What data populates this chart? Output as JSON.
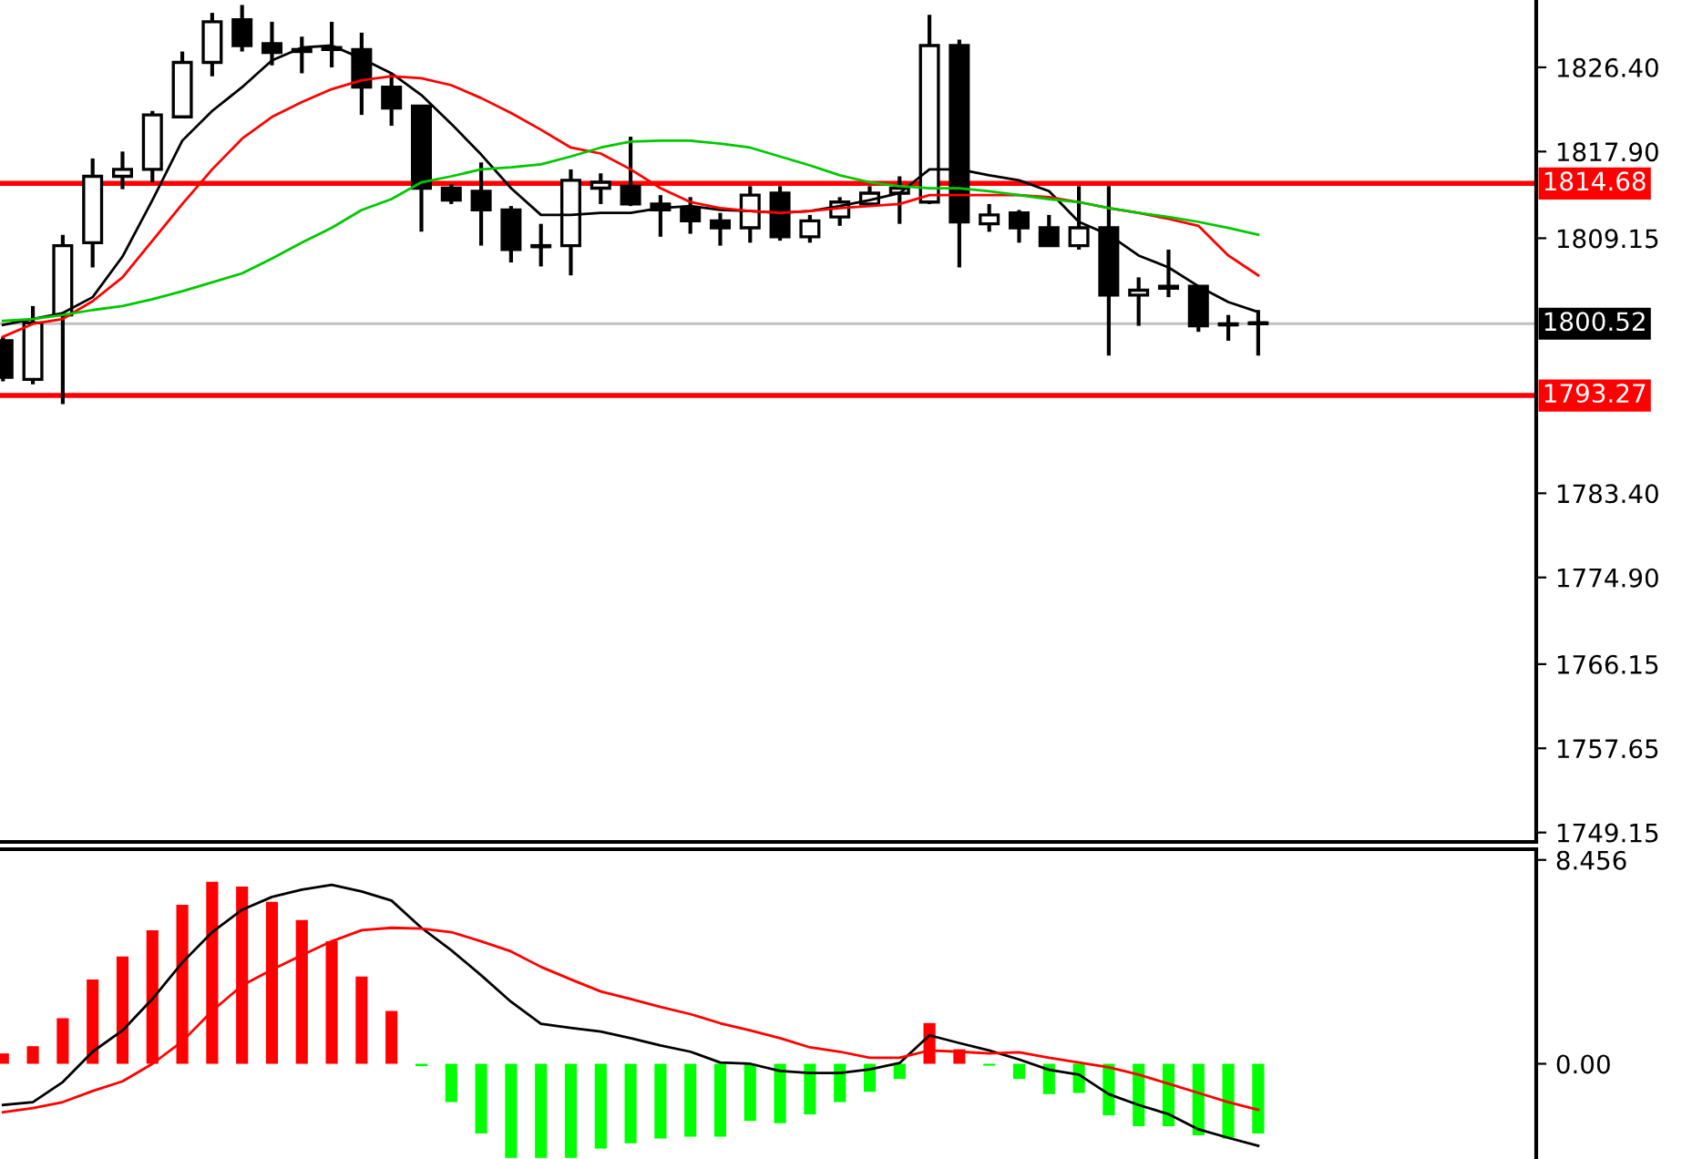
{
  "chart_data": [
    {
      "type": "candlestick",
      "categories": [
        null,
        null,
        null,
        null,
        null,
        null,
        null,
        null,
        null,
        null,
        null,
        null,
        null,
        null,
        null,
        null,
        null,
        null,
        null,
        null,
        null,
        null,
        null,
        null,
        null,
        null,
        null,
        null,
        null,
        null,
        null,
        null,
        null,
        null,
        null,
        null,
        null,
        null,
        null,
        null,
        null,
        null,
        null
      ],
      "ohlc": [
        [
          1798.8,
          1799.2,
          1794.7,
          1795.1
        ],
        [
          1794.9,
          1802.3,
          1794.4,
          1800.6
        ],
        [
          1801.4,
          1809.5,
          1792.4,
          1808.4
        ],
        [
          1808.7,
          1817.2,
          1806.2,
          1815.4
        ],
        [
          1815.4,
          1817.9,
          1814.1,
          1816.1
        ],
        [
          1816.1,
          1822.0,
          1814.8,
          1821.6
        ],
        [
          1821.4,
          1828.0,
          1821.4,
          1826.9
        ],
        [
          1826.9,
          1831.9,
          1825.5,
          1831.0
        ],
        [
          1831.2,
          1832.7,
          1828.0,
          1828.6
        ],
        [
          1828.8,
          1831.0,
          1826.6,
          1827.9
        ],
        [
          1828.2,
          1829.5,
          1825.8,
          1828.0
        ],
        [
          1828.4,
          1831.0,
          1826.4,
          1828.2
        ],
        [
          1828.2,
          1829.9,
          1821.6,
          1824.4
        ],
        [
          1824.4,
          1825.8,
          1820.5,
          1822.3
        ],
        [
          1822.5,
          1822.5,
          1809.8,
          1814.2
        ],
        [
          1814.2,
          1814.6,
          1812.6,
          1813.0
        ],
        [
          1813.9,
          1816.8,
          1808.4,
          1812.0
        ],
        [
          1812.0,
          1812.4,
          1806.7,
          1808.0
        ],
        [
          1808.4,
          1810.6,
          1806.3,
          1808.3
        ],
        [
          1808.4,
          1816.1,
          1805.4,
          1815.0
        ],
        [
          1814.2,
          1815.7,
          1812.6,
          1814.8
        ],
        [
          1814.4,
          1819.4,
          1812.4,
          1812.6
        ],
        [
          1812.6,
          1813.5,
          1809.3,
          1812.0
        ],
        [
          1812.2,
          1813.3,
          1809.6,
          1810.9
        ],
        [
          1810.9,
          1811.7,
          1808.4,
          1810.2
        ],
        [
          1810.2,
          1814.4,
          1808.7,
          1813.5
        ],
        [
          1813.7,
          1814.4,
          1808.9,
          1809.3
        ],
        [
          1809.3,
          1811.5,
          1808.7,
          1810.9
        ],
        [
          1811.3,
          1813.3,
          1810.4,
          1812.8
        ],
        [
          1812.6,
          1814.4,
          1812.4,
          1813.7
        ],
        [
          1813.7,
          1815.4,
          1810.6,
          1814.2
        ],
        [
          1812.8,
          1831.7,
          1812.6,
          1828.6
        ],
        [
          1828.6,
          1829.2,
          1806.2,
          1810.8
        ],
        [
          1810.6,
          1812.6,
          1809.8,
          1811.5
        ],
        [
          1811.7,
          1812.0,
          1808.7,
          1810.2
        ],
        [
          1810.2,
          1811.5,
          1808.4,
          1808.4
        ],
        [
          1808.4,
          1814.4,
          1808.0,
          1810.2
        ],
        [
          1810.2,
          1814.4,
          1797.3,
          1803.4
        ],
        [
          1803.4,
          1805.2,
          1800.3,
          1803.9
        ],
        [
          1804.1,
          1808.0,
          1803.2,
          1804.3
        ],
        [
          1804.3,
          1804.3,
          1799.7,
          1800.3
        ],
        [
          1800.5,
          1801.4,
          1798.8,
          1800.4
        ],
        [
          1800.6,
          1801.9,
          1797.3,
          1800.52
        ]
      ],
      "series": [
        {
          "type": "line",
          "color": "#000000",
          "values": [
            1800.4,
            1801.0,
            1801.6,
            1803.2,
            1807.3,
            1813.0,
            1819.0,
            1822.0,
            1824.4,
            1827.1,
            1828.4,
            1828.6,
            1827.3,
            1825.8,
            1823.6,
            1820.7,
            1817.6,
            1814.2,
            1811.5,
            1811.5,
            1811.7,
            1811.7,
            1812.2,
            1812.4,
            1812.0,
            1811.9,
            1811.7,
            1811.9,
            1812.4,
            1813.0,
            1813.7,
            1816.1,
            1816.1,
            1815.5,
            1815.0,
            1813.9,
            1810.8,
            1809.5,
            1807.4,
            1806.2,
            1804.3,
            1802.7,
            1801.7
          ]
        },
        {
          "type": "line",
          "color": "#ff0000",
          "values": [
            1799.2,
            1800.5,
            1801.0,
            1802.8,
            1805.2,
            1808.9,
            1812.6,
            1816.1,
            1819.2,
            1821.4,
            1822.9,
            1824.2,
            1825.1,
            1825.5,
            1825.3,
            1824.6,
            1823.3,
            1821.8,
            1820.1,
            1818.3,
            1817.7,
            1816.1,
            1814.2,
            1812.8,
            1812.2,
            1811.9,
            1811.7,
            1811.9,
            1812.2,
            1812.4,
            1812.6,
            1813.5,
            1813.5,
            1813.5,
            1813.5,
            1813.3,
            1812.8,
            1812.2,
            1811.7,
            1811.1,
            1810.4,
            1807.4,
            1805.4
          ]
        },
        {
          "type": "line",
          "color": "#00c800",
          "values": [
            1800.8,
            1801.0,
            1801.4,
            1801.9,
            1802.3,
            1803.0,
            1803.8,
            1804.7,
            1805.6,
            1807.1,
            1808.7,
            1810.2,
            1812.0,
            1813.1,
            1814.8,
            1815.4,
            1816.1,
            1816.3,
            1816.6,
            1817.4,
            1818.3,
            1818.9,
            1819.0,
            1819.0,
            1818.7,
            1818.3,
            1817.4,
            1816.5,
            1815.5,
            1814.8,
            1814.4,
            1814.2,
            1814.2,
            1813.9,
            1813.5,
            1813.1,
            1812.8,
            1812.2,
            1811.7,
            1811.3,
            1810.8,
            1810.2,
            1809.5
          ]
        }
      ],
      "ref_lines": [
        {
          "axis": "y",
          "value": 1814.68,
          "label": "1814.68",
          "color": "#ff0000"
        },
        {
          "axis": "y",
          "value": 1800.52,
          "label": "1800.52",
          "color": "#c0c0c0"
        },
        {
          "axis": "y",
          "value": 1793.27,
          "label": "1793.27",
          "color": "#ff0000"
        }
      ],
      "ylim": [
        1748.2,
        1833.2
      ],
      "yticks": [
        {
          "value": 1749.15,
          "label": "1749.15"
        },
        {
          "value": 1757.65,
          "label": "1757.65"
        },
        {
          "value": 1766.15,
          "label": "1766.15"
        },
        {
          "value": 1774.9,
          "label": "1774.90"
        },
        {
          "value": 1783.4,
          "label": "1783.40"
        },
        {
          "value": 1809.15,
          "label": "1809.15"
        },
        {
          "value": 1817.9,
          "label": "1817.90"
        },
        {
          "value": 1826.4,
          "label": "1826.40"
        }
      ],
      "tick_labels": "y",
      "grid": false,
      "legend": false
    },
    {
      "type": "bar",
      "categories": [
        null,
        null,
        null,
        null,
        null,
        null,
        null,
        null,
        null,
        null,
        null,
        null,
        null,
        null,
        null,
        null,
        null,
        null,
        null,
        null,
        null,
        null,
        null,
        null,
        null,
        null,
        null,
        null,
        null,
        null,
        null,
        null,
        null,
        null,
        null,
        null,
        null,
        null,
        null,
        null,
        null,
        null,
        null
      ],
      "series": [
        {
          "type": "bar",
          "colors": [
            "#ff0000",
            "#ff0000",
            "#ff0000",
            "#ff0000",
            "#ff0000",
            "#ff0000",
            "#ff0000",
            "#ff0000",
            "#ff0000",
            "#ff0000",
            "#ff0000",
            "#ff0000",
            "#ff0000",
            "#ff0000",
            "#00ff00",
            "#00ff00",
            "#00ff00",
            "#00ff00",
            "#00ff00",
            "#00ff00",
            "#00ff00",
            "#00ff00",
            "#00ff00",
            "#00ff00",
            "#00ff00",
            "#00ff00",
            "#00ff00",
            "#00ff00",
            "#00ff00",
            "#00ff00",
            "#00ff00",
            "#ff0000",
            "#ff0000",
            "#00ff00",
            "#00ff00",
            "#00ff00",
            "#00ff00",
            "#00ff00",
            "#00ff00",
            "#00ff00",
            "#00ff00",
            "#00ff00",
            "#00ff00"
          ],
          "values": [
            0.43,
            0.73,
            1.89,
            3.5,
            4.45,
            5.54,
            6.59,
            7.55,
            7.35,
            6.72,
            5.96,
            5.08,
            3.62,
            2.19,
            -0.1,
            -1.59,
            -2.89,
            -3.9,
            -3.9,
            -3.9,
            -3.52,
            -3.3,
            -3.1,
            -3.02,
            -3.02,
            -2.37,
            -2.47,
            -2.1,
            -1.59,
            -1.16,
            -0.63,
            1.69,
            0.6,
            -0.08,
            -0.63,
            -1.26,
            -1.21,
            -2.14,
            -2.59,
            -2.59,
            -2.97,
            -3.1,
            -2.89
          ]
        },
        {
          "type": "line",
          "color": "#000000",
          "values": [
            -1.71,
            -1.59,
            -0.76,
            0.5,
            1.38,
            2.69,
            4.2,
            5.46,
            6.39,
            6.92,
            7.22,
            7.42,
            7.15,
            6.77,
            5.64,
            4.71,
            3.67,
            2.57,
            1.66,
            1.49,
            1.34,
            1.06,
            0.76,
            0.5,
            0.05,
            0.0,
            -0.3,
            -0.38,
            -0.38,
            -0.23,
            0.03,
            1.18,
            0.86,
            0.55,
            0.18,
            -0.25,
            -0.45,
            -1.26,
            -1.71,
            -2.09,
            -2.72,
            -3.07,
            -3.4
          ]
        },
        {
          "type": "line",
          "color": "#ff0000",
          "values": [
            -2.01,
            -1.84,
            -1.59,
            -1.13,
            -0.73,
            0.0,
            0.93,
            2.19,
            3.25,
            3.9,
            4.51,
            5.08,
            5.54,
            5.64,
            5.61,
            5.46,
            5.08,
            4.66,
            4.02,
            3.5,
            3.0,
            2.69,
            2.36,
            2.06,
            1.68,
            1.38,
            1.06,
            0.68,
            0.5,
            0.25,
            0.25,
            0.55,
            0.5,
            0.43,
            0.48,
            0.25,
            0.05,
            -0.15,
            -0.45,
            -0.83,
            -1.21,
            -1.59,
            -1.91
          ]
        }
      ],
      "ylim": [
        -3.95,
        8.9
      ],
      "yticks": [
        {
          "value": 8.456,
          "label": "8.456"
        },
        {
          "value": 0,
          "label": "0.00"
        }
      ],
      "tick_labels": "y",
      "grid": false,
      "legend": false
    }
  ]
}
